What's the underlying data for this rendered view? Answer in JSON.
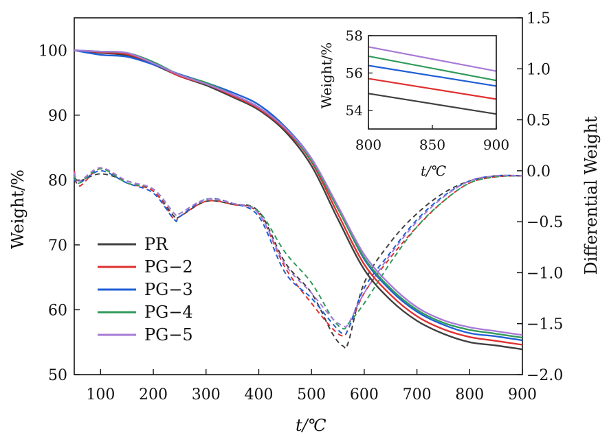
{
  "chart_data": {
    "type": "line",
    "main": {
      "xlabel": "t/℃",
      "ylabel_left": "Weight/%",
      "ylabel_right": "Differential Weight",
      "xlim": [
        50,
        900
      ],
      "ylim_left": [
        50,
        105
      ],
      "ylim_right": [
        -2.0,
        1.5
      ],
      "x_ticks": [
        100,
        200,
        300,
        400,
        500,
        600,
        700,
        800,
        900
      ],
      "y_ticks_left": [
        50,
        60,
        70,
        80,
        90,
        100
      ],
      "y_ticks_right": [
        "1.5",
        "1.0",
        "0.5",
        "0.0",
        "−0.5",
        "−1.0",
        "−1.5",
        "−2.0"
      ],
      "legend_position": "lower-left",
      "grid": false
    },
    "series": [
      {
        "name": "PR",
        "color": "#404040",
        "tg": {
          "x": [
            50,
            100,
            150,
            200,
            250,
            300,
            350,
            400,
            450,
            500,
            550,
            600,
            650,
            700,
            750,
            800,
            850,
            900
          ],
          "y": [
            100,
            99.6,
            99.2,
            97.8,
            96.0,
            94.6,
            92.8,
            90.8,
            87.5,
            82.2,
            74.0,
            66.2,
            61.5,
            58.3,
            56.3,
            55.0,
            54.5,
            53.9
          ]
        },
        "dtg": {
          "x": [
            50,
            60,
            100,
            150,
            200,
            240,
            250,
            300,
            350,
            400,
            450,
            500,
            540,
            560,
            570,
            600,
            650,
            700,
            750,
            800,
            850,
            900
          ],
          "y": [
            -0.05,
            -0.1,
            -0.03,
            -0.1,
            -0.2,
            -0.45,
            -0.45,
            -0.3,
            -0.33,
            -0.4,
            -0.9,
            -1.2,
            -1.6,
            -1.72,
            -1.68,
            -1.1,
            -0.7,
            -0.42,
            -0.22,
            -0.1,
            -0.05,
            -0.05
          ]
        }
      },
      {
        "name": "PG−2",
        "color": "#e03030",
        "tg": {
          "x": [
            50,
            100,
            150,
            200,
            250,
            300,
            350,
            400,
            450,
            500,
            550,
            600,
            650,
            700,
            750,
            800,
            850,
            900
          ],
          "y": [
            100,
            99.7,
            99.4,
            98.0,
            96.0,
            94.8,
            93.0,
            91.0,
            87.8,
            82.8,
            74.8,
            67.0,
            62.3,
            59.0,
            57.0,
            55.8,
            55.2,
            54.6
          ]
        },
        "dtg": {
          "x": [
            50,
            60,
            100,
            150,
            200,
            240,
            250,
            300,
            350,
            400,
            450,
            500,
            540,
            560,
            570,
            600,
            650,
            700,
            750,
            800,
            850,
            900
          ],
          "y": [
            0.0,
            -0.15,
            0.02,
            -0.12,
            -0.2,
            -0.48,
            -0.45,
            -0.3,
            -0.33,
            -0.42,
            -0.95,
            -1.3,
            -1.55,
            -1.62,
            -1.55,
            -1.2,
            -0.85,
            -0.55,
            -0.3,
            -0.12,
            -0.06,
            -0.05
          ]
        }
      },
      {
        "name": "PG−3",
        "color": "#1f5fd6",
        "tg": {
          "x": [
            50,
            100,
            150,
            200,
            250,
            300,
            350,
            400,
            450,
            500,
            550,
            600,
            650,
            700,
            750,
            800,
            850,
            900
          ],
          "y": [
            100,
            99.3,
            99.0,
            97.8,
            96.3,
            95.0,
            93.5,
            91.6,
            88.2,
            83.3,
            75.8,
            67.8,
            63.0,
            59.7,
            57.7,
            56.4,
            55.9,
            55.3
          ]
        },
        "dtg": {
          "x": [
            50,
            60,
            100,
            150,
            200,
            240,
            250,
            300,
            350,
            400,
            450,
            500,
            540,
            560,
            570,
            600,
            650,
            700,
            750,
            800,
            850,
            900
          ],
          "y": [
            -0.08,
            -0.12,
            0.0,
            -0.12,
            -0.22,
            -0.48,
            -0.45,
            -0.28,
            -0.32,
            -0.45,
            -1.0,
            -1.25,
            -1.5,
            -1.6,
            -1.55,
            -1.15,
            -0.8,
            -0.48,
            -0.25,
            -0.1,
            -0.05,
            -0.05
          ]
        }
      },
      {
        "name": "PG−4",
        "color": "#2f9a5a",
        "tg": {
          "x": [
            50,
            100,
            150,
            200,
            250,
            300,
            350,
            400,
            450,
            500,
            550,
            600,
            650,
            700,
            750,
            800,
            850,
            900
          ],
          "y": [
            100,
            99.8,
            99.6,
            98.2,
            96.2,
            95.0,
            93.2,
            91.2,
            88.0,
            83.0,
            75.6,
            68.0,
            63.3,
            60.0,
            58.0,
            56.9,
            56.3,
            55.7
          ]
        },
        "dtg": {
          "x": [
            50,
            60,
            100,
            150,
            200,
            240,
            250,
            300,
            350,
            400,
            450,
            500,
            540,
            560,
            570,
            600,
            650,
            700,
            750,
            800,
            850,
            900
          ],
          "y": [
            -0.05,
            -0.12,
            0.02,
            -0.12,
            -0.18,
            -0.42,
            -0.42,
            -0.28,
            -0.32,
            -0.4,
            -0.8,
            -1.1,
            -1.45,
            -1.55,
            -1.5,
            -1.3,
            -0.9,
            -0.55,
            -0.3,
            -0.12,
            -0.06,
            -0.05
          ]
        }
      },
      {
        "name": "PG−5",
        "color": "#a77ad6",
        "tg": {
          "x": [
            50,
            100,
            150,
            200,
            250,
            300,
            350,
            400,
            450,
            500,
            550,
            600,
            650,
            700,
            750,
            800,
            850,
            900
          ],
          "y": [
            100,
            99.8,
            99.6,
            98.0,
            96.2,
            94.8,
            93.2,
            91.2,
            88.0,
            83.3,
            76.0,
            68.5,
            63.8,
            60.4,
            58.4,
            57.3,
            56.7,
            56.1
          ]
        },
        "dtg": {
          "x": [
            50,
            60,
            100,
            150,
            200,
            240,
            250,
            300,
            350,
            400,
            450,
            500,
            540,
            560,
            570,
            600,
            650,
            700,
            750,
            800,
            850,
            900
          ],
          "y": [
            -0.02,
            -0.1,
            0.03,
            -0.1,
            -0.18,
            -0.42,
            -0.42,
            -0.28,
            -0.32,
            -0.42,
            -0.92,
            -1.2,
            -1.45,
            -1.52,
            -1.5,
            -1.2,
            -0.82,
            -0.5,
            -0.26,
            -0.1,
            -0.05,
            -0.05
          ]
        }
      }
    ],
    "inset": {
      "xlabel": "t/℃",
      "ylabel": "Weight/%",
      "xlim": [
        800,
        900
      ],
      "ylim": [
        53,
        58
      ],
      "x_ticks": [
        800,
        850,
        900
      ],
      "y_ticks": [
        54,
        56,
        58
      ],
      "series": [
        {
          "name": "PR",
          "color": "#404040",
          "x": [
            800,
            900
          ],
          "y": [
            54.9,
            53.8
          ]
        },
        {
          "name": "PG−2",
          "color": "#e03030",
          "x": [
            800,
            900
          ],
          "y": [
            55.7,
            54.6
          ]
        },
        {
          "name": "PG−3",
          "color": "#1f5fd6",
          "x": [
            800,
            900
          ],
          "y": [
            56.4,
            55.3
          ]
        },
        {
          "name": "PG−4",
          "color": "#2f9a5a",
          "x": [
            800,
            900
          ],
          "y": [
            56.9,
            55.6
          ]
        },
        {
          "name": "PG−5",
          "color": "#a77ad6",
          "x": [
            800,
            900
          ],
          "y": [
            57.4,
            56.1
          ]
        }
      ]
    }
  }
}
